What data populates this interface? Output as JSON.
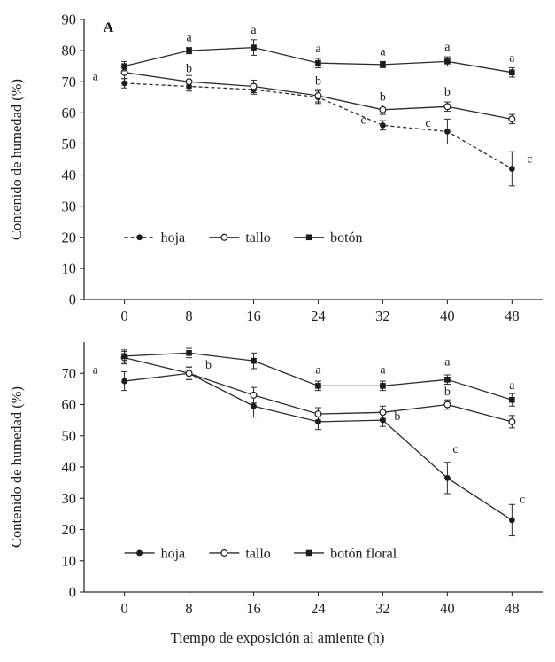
{
  "figure": {
    "x_axis_title": "Tiempo de exposición al amiente (h)"
  },
  "chart_data": [
    {
      "type": "line",
      "panel_label": "A",
      "ylabel": "Contenido de humedad (%)",
      "x": [
        0,
        8,
        16,
        24,
        32,
        40,
        48
      ],
      "xlim": [
        -5,
        51.8
      ],
      "ylim": [
        0,
        90
      ],
      "yticks": [
        0,
        10,
        20,
        30,
        40,
        50,
        60,
        70,
        80,
        90
      ],
      "series": [
        {
          "name": "hoja",
          "marker": "filled-circle",
          "line": "dashed",
          "values": [
            69.5,
            68.5,
            67.5,
            65,
            56,
            54,
            42
          ],
          "errors": [
            1.5,
            1.5,
            1.5,
            2,
            1.5,
            4,
            5.5
          ]
        },
        {
          "name": "tallo",
          "marker": "open-circle",
          "line": "solid",
          "values": [
            73,
            70,
            68.5,
            65.5,
            61,
            62,
            58
          ],
          "errors": [
            2,
            2,
            2,
            2,
            1.5,
            1.5,
            1.5
          ]
        },
        {
          "name": "botón",
          "marker": "filled-square",
          "line": "solid",
          "values": [
            75,
            80,
            81,
            76,
            75.5,
            76.5,
            73
          ],
          "errors": [
            1.5,
            1,
            2.5,
            1.5,
            1,
            1.5,
            1.5
          ]
        }
      ],
      "annotations": [
        {
          "x": -3.6,
          "y": 70.5,
          "text": "a"
        },
        {
          "x": 8,
          "y": 83,
          "text": "a"
        },
        {
          "x": 8,
          "y": 73,
          "text": "b"
        },
        {
          "x": 16,
          "y": 85.5,
          "text": "a"
        },
        {
          "x": 24,
          "y": 79.5,
          "text": "a"
        },
        {
          "x": 24,
          "y": 69,
          "text": "b"
        },
        {
          "x": 32,
          "y": 78.5,
          "text": "a"
        },
        {
          "x": 32,
          "y": 64,
          "text": "b"
        },
        {
          "x": 29.6,
          "y": 56.5,
          "text": "c"
        },
        {
          "x": 40,
          "y": 80,
          "text": "a"
        },
        {
          "x": 40,
          "y": 65.5,
          "text": "b"
        },
        {
          "x": 37.6,
          "y": 55.5,
          "text": "c"
        },
        {
          "x": 48,
          "y": 76.5,
          "text": "a"
        },
        {
          "x": 50.2,
          "y": 44,
          "text": "c"
        }
      ],
      "legend": {
        "y": 20,
        "x_starts": [
          0,
          10.5,
          21
        ],
        "items": [
          "hoja",
          "tallo",
          "botón"
        ]
      }
    },
    {
      "type": "line",
      "panel_label": "",
      "ylabel": "Contenido de humedad (%)",
      "x": [
        0,
        8,
        16,
        24,
        32,
        40,
        48
      ],
      "xlim": [
        -5,
        51.8
      ],
      "ylim": [
        0,
        80
      ],
      "yticks": [
        0,
        10,
        20,
        30,
        40,
        50,
        60,
        70
      ],
      "series": [
        {
          "name": "hoja",
          "marker": "filled-circle",
          "line": "solid",
          "values": [
            67.5,
            70,
            59.5,
            54.5,
            55,
            36.5,
            23
          ],
          "errors": [
            3,
            2,
            3.5,
            2.5,
            2,
            5,
            5
          ]
        },
        {
          "name": "tallo",
          "marker": "open-circle",
          "line": "solid",
          "values": [
            75,
            70,
            63,
            57,
            57.5,
            60,
            54.5
          ],
          "errors": [
            2,
            2,
            2.5,
            2,
            2,
            1.5,
            2
          ]
        },
        {
          "name": "botón floral",
          "marker": "filled-square",
          "line": "solid",
          "values": [
            75.5,
            76.5,
            74,
            66,
            66,
            68,
            61.5
          ],
          "errors": [
            2,
            1.5,
            2.5,
            1.5,
            1.5,
            1.5,
            2
          ]
        }
      ],
      "annotations": [
        {
          "x": -3.6,
          "y": 70,
          "text": "a"
        },
        {
          "x": 10.4,
          "y": 71.5,
          "text": "b"
        },
        {
          "x": 24,
          "y": 70,
          "text": "a"
        },
        {
          "x": 32,
          "y": 70,
          "text": "a"
        },
        {
          "x": 33.8,
          "y": 55,
          "text": "b"
        },
        {
          "x": 40,
          "y": 72.5,
          "text": "a"
        },
        {
          "x": 40,
          "y": 63,
          "text": "b"
        },
        {
          "x": 41,
          "y": 44.5,
          "text": "c"
        },
        {
          "x": 48,
          "y": 65,
          "text": "a"
        },
        {
          "x": 49.3,
          "y": 28.5,
          "text": "c"
        }
      ],
      "legend": {
        "y": 12.5,
        "x_starts": [
          0,
          10.5,
          21
        ],
        "items": [
          "hoja",
          "tallo",
          "botón floral"
        ]
      }
    }
  ]
}
